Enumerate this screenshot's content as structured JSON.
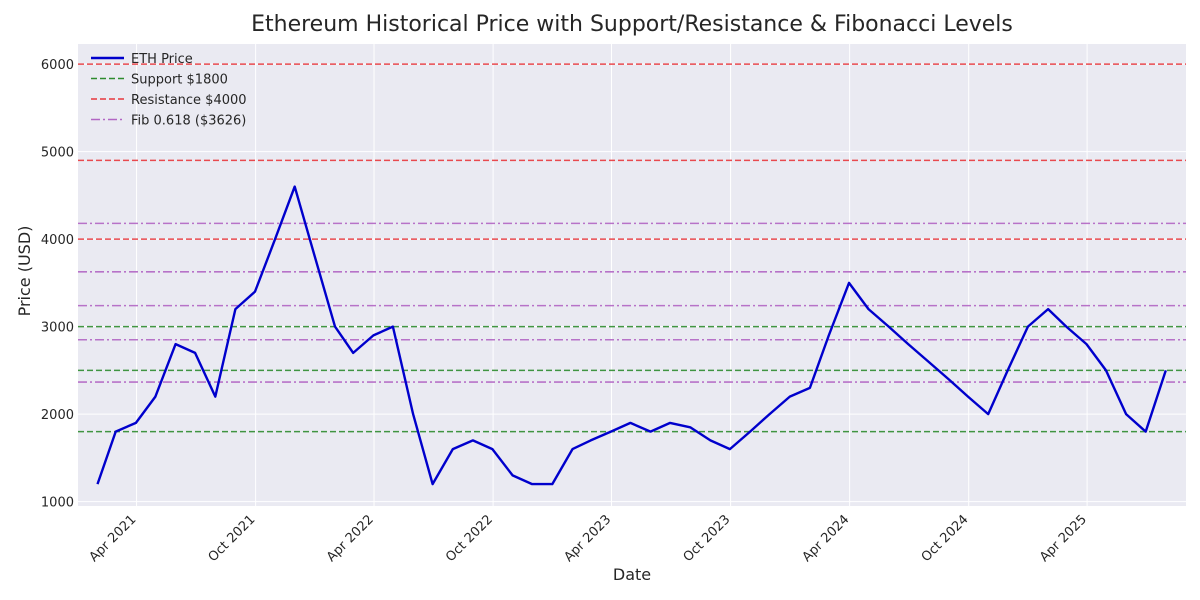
{
  "chart_data": {
    "type": "line",
    "title": "Ethereum Historical Price with Support/Resistance & Fibonacci Levels",
    "xlabel": "Date",
    "ylabel": "Price (USD)",
    "xlim": [
      "2021-01-01",
      "2025-08-31"
    ],
    "ylim": [
      950,
      6230
    ],
    "grid": true,
    "legend_position": "top-left",
    "x_ticks": [
      {
        "date": "2021-04-01",
        "label": "Apr 2021"
      },
      {
        "date": "2021-10-01",
        "label": "Oct 2021"
      },
      {
        "date": "2022-04-01",
        "label": "Apr 2022"
      },
      {
        "date": "2022-10-01",
        "label": "Oct 2022"
      },
      {
        "date": "2023-04-01",
        "label": "Apr 2023"
      },
      {
        "date": "2023-10-01",
        "label": "Oct 2023"
      },
      {
        "date": "2024-04-01",
        "label": "Apr 2024"
      },
      {
        "date": "2024-10-01",
        "label": "Oct 2024"
      },
      {
        "date": "2025-04-01",
        "label": "Apr 2025"
      }
    ],
    "y_ticks": [
      1000,
      2000,
      3000,
      4000,
      5000,
      6000
    ],
    "series": [
      {
        "name": "ETH Price",
        "color": "#0000cc",
        "x": [
          "2021-01-31",
          "2021-02-28",
          "2021-03-31",
          "2021-04-30",
          "2021-05-31",
          "2021-06-30",
          "2021-07-31",
          "2021-08-31",
          "2021-09-30",
          "2021-10-31",
          "2021-11-30",
          "2021-12-31",
          "2022-01-31",
          "2022-02-28",
          "2022-03-31",
          "2022-04-30",
          "2022-05-31",
          "2022-06-30",
          "2022-07-31",
          "2022-08-31",
          "2022-09-30",
          "2022-10-31",
          "2022-11-30",
          "2022-12-31",
          "2023-01-31",
          "2023-02-28",
          "2023-03-31",
          "2023-04-30",
          "2023-05-31",
          "2023-06-30",
          "2023-07-31",
          "2023-08-31",
          "2023-09-30",
          "2023-10-31",
          "2023-11-30",
          "2023-12-31",
          "2024-01-31",
          "2024-02-29",
          "2024-03-31",
          "2024-04-30",
          "2024-05-31",
          "2024-06-30",
          "2024-07-31",
          "2024-08-31",
          "2024-09-30",
          "2024-10-31",
          "2024-11-30",
          "2024-12-31",
          "2025-01-31",
          "2025-02-28",
          "2025-03-31",
          "2025-04-30",
          "2025-05-31",
          "2025-06-30",
          "2025-07-31"
        ],
        "values": [
          1200,
          1800,
          1900,
          2200,
          2800,
          2700,
          2200,
          3200,
          3400,
          4000,
          4600,
          3800,
          3000,
          2700,
          2900,
          3000,
          2000,
          1200,
          1600,
          1700,
          1600,
          1300,
          1200,
          1200,
          1600,
          1700,
          1800,
          1900,
          1800,
          1900,
          1850,
          1700,
          1600,
          1800,
          2000,
          2200,
          2300,
          2900,
          3500,
          3200,
          3000,
          2800,
          2600,
          2400,
          2200,
          2000,
          2500,
          3000,
          3200,
          3000,
          2800,
          2500,
          2000,
          1800,
          2500
        ]
      }
    ],
    "horizontal_levels": [
      {
        "legend": "Support $1800",
        "kind": "support",
        "value": 1800,
        "color": "#2e8b2e",
        "style": "dashed"
      },
      {
        "legend": "",
        "kind": "support",
        "value": 2500,
        "color": "#2e8b2e",
        "style": "dashed"
      },
      {
        "legend": "",
        "kind": "support",
        "value": 3000,
        "color": "#2e8b2e",
        "style": "dashed"
      },
      {
        "legend": "Resistance $4000",
        "kind": "resistance",
        "value": 4000,
        "color": "#e8383d",
        "style": "dashed"
      },
      {
        "legend": "",
        "kind": "resistance",
        "value": 4900,
        "color": "#e8383d",
        "style": "dashed"
      },
      {
        "legend": "",
        "kind": "resistance",
        "value": 6000,
        "color": "#e8383d",
        "style": "dashed"
      },
      {
        "legend": "",
        "kind": "fibonacci",
        "value": 2366,
        "color": "#b266c4",
        "style": "dashdot"
      },
      {
        "legend": "",
        "kind": "fibonacci",
        "value": 2850,
        "color": "#b266c4",
        "style": "dashdot"
      },
      {
        "legend": "",
        "kind": "fibonacci",
        "value": 3240,
        "color": "#b266c4",
        "style": "dashdot"
      },
      {
        "legend": "Fib 0.618 ($3626)",
        "kind": "fibonacci",
        "value": 3626,
        "color": "#b266c4",
        "style": "dashdot"
      },
      {
        "legend": "",
        "kind": "fibonacci",
        "value": 4180,
        "color": "#b266c4",
        "style": "dashdot"
      }
    ],
    "colors": {
      "plot_background": "#eaeaf2",
      "grid": "#ffffff",
      "text": "#262626"
    }
  }
}
